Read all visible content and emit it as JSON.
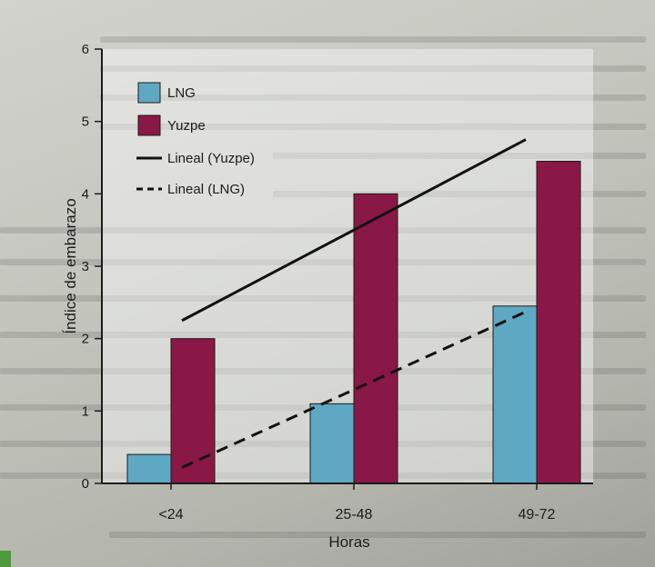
{
  "chart_data": {
    "type": "bar",
    "categories": [
      "<24",
      "25-48",
      "49-72"
    ],
    "series": [
      {
        "name": "LNG",
        "values": [
          0.4,
          1.1,
          2.45
        ],
        "color": "#5fa8c4"
      },
      {
        "name": "Yuzpe",
        "values": [
          2.0,
          4.0,
          4.45
        ],
        "color": "#8a1846"
      }
    ],
    "trendlines": [
      {
        "name": "Lineal (Yuzpe)",
        "style": "solid",
        "start": 2.25,
        "end": 4.75
      },
      {
        "name": "Lineal (LNG)",
        "style": "dashed",
        "start": 0.22,
        "end": 2.37
      }
    ],
    "xlabel": "Horas",
    "ylabel": "Índice de embarazo",
    "ylim": [
      0,
      6
    ],
    "yticks": [
      "0",
      "1",
      "2",
      "3",
      "4",
      "5",
      "6"
    ],
    "legend_position": "top-left",
    "grid": false
  }
}
